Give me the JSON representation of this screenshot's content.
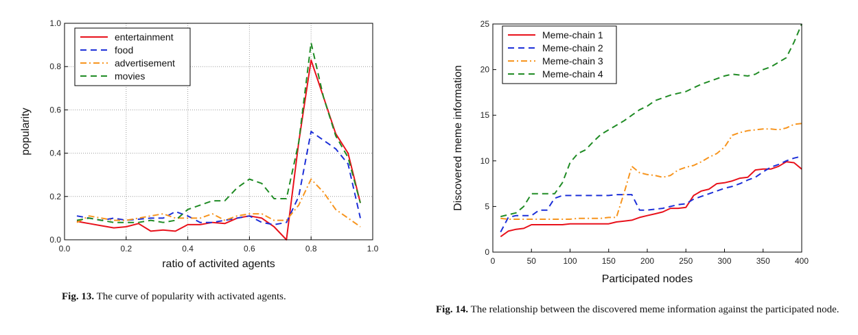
{
  "fig13": {
    "caption_label": "Fig. 13.",
    "caption_text": "The curve of popularity with activated agents."
  },
  "fig14": {
    "caption_label": "Fig. 14.",
    "caption_text": "The relationship between the discovered meme information against the participated node."
  },
  "chart_data": [
    {
      "type": "line",
      "title": "",
      "xlabel": "ratio of activited agents",
      "ylabel": "popularity",
      "xlim": [
        0.0,
        1.0
      ],
      "ylim": [
        0.0,
        1.0
      ],
      "xticks": [
        "0.0",
        "0.2",
        "0.4",
        "0.6",
        "0.8",
        "1.0"
      ],
      "yticks": [
        "0.0",
        "0.2",
        "0.4",
        "0.6",
        "0.8",
        "1.0"
      ],
      "grid": true,
      "legend_position": "top-left",
      "x": [
        0.04,
        0.08,
        0.12,
        0.16,
        0.2,
        0.24,
        0.28,
        0.32,
        0.36,
        0.4,
        0.44,
        0.48,
        0.52,
        0.56,
        0.6,
        0.64,
        0.68,
        0.72,
        0.76,
        0.8,
        0.84,
        0.88,
        0.92,
        0.96
      ],
      "series": [
        {
          "name": "entertainment",
          "color": "#e8101a",
          "dash": "solid",
          "values": [
            0.085,
            0.075,
            0.065,
            0.055,
            0.06,
            0.075,
            0.04,
            0.045,
            0.04,
            0.07,
            0.07,
            0.08,
            0.075,
            0.1,
            0.11,
            0.1,
            0.06,
            0.0,
            0.45,
            0.83,
            0.66,
            0.49,
            0.4,
            0.17
          ]
        },
        {
          "name": "food",
          "color": "#1c2fd8",
          "dash": "dash",
          "values": [
            0.11,
            0.1,
            0.09,
            0.1,
            0.09,
            0.095,
            0.1,
            0.1,
            0.13,
            0.11,
            0.08,
            0.08,
            0.09,
            0.1,
            0.11,
            0.08,
            0.07,
            0.08,
            0.2,
            0.5,
            0.46,
            0.42,
            0.35,
            0.1
          ]
        },
        {
          "name": "advertisement",
          "color": "#f7941d",
          "dash": "dashdot",
          "values": [
            0.08,
            0.11,
            0.1,
            0.09,
            0.09,
            0.1,
            0.11,
            0.12,
            0.1,
            0.1,
            0.1,
            0.12,
            0.09,
            0.11,
            0.12,
            0.12,
            0.09,
            0.09,
            0.16,
            0.28,
            0.22,
            0.14,
            0.1,
            0.06
          ]
        },
        {
          "name": "movies",
          "color": "#1f8b24",
          "dash": "dash",
          "values": [
            0.09,
            0.1,
            0.09,
            0.08,
            0.08,
            0.08,
            0.09,
            0.08,
            0.09,
            0.14,
            0.16,
            0.18,
            0.18,
            0.24,
            0.28,
            0.26,
            0.19,
            0.19,
            0.45,
            0.91,
            0.66,
            0.48,
            0.38,
            0.17
          ]
        }
      ]
    },
    {
      "type": "line",
      "title": "",
      "xlabel": "Participated nodes",
      "ylabel": "Discovered meme information",
      "xlim": [
        0,
        400
      ],
      "ylim": [
        0,
        25
      ],
      "xticks": [
        "0",
        "50",
        "100",
        "150",
        "200",
        "250",
        "300",
        "350",
        "400"
      ],
      "yticks": [
        "0",
        "5",
        "10",
        "15",
        "20",
        "25"
      ],
      "grid": false,
      "legend_position": "top-left",
      "x": [
        10,
        20,
        30,
        40,
        50,
        60,
        70,
        80,
        90,
        100,
        110,
        120,
        130,
        140,
        150,
        160,
        170,
        180,
        190,
        200,
        210,
        220,
        230,
        240,
        250,
        260,
        270,
        280,
        290,
        300,
        310,
        320,
        330,
        340,
        350,
        360,
        370,
        380,
        390,
        400
      ],
      "series": [
        {
          "name": "Meme-chain 1",
          "color": "#e8101a",
          "dash": "solid",
          "values": [
            1.7,
            2.3,
            2.5,
            2.6,
            3.0,
            3.0,
            3.0,
            3.0,
            3.0,
            3.1,
            3.1,
            3.1,
            3.1,
            3.1,
            3.1,
            3.3,
            3.4,
            3.5,
            3.8,
            4.0,
            4.2,
            4.4,
            4.8,
            4.8,
            4.9,
            6.2,
            6.7,
            6.9,
            7.5,
            7.6,
            7.8,
            8.1,
            8.2,
            9.0,
            9.1,
            9.1,
            9.4,
            9.9,
            9.8,
            9.1
          ]
        },
        {
          "name": "Meme-chain 2",
          "color": "#1c2fd8",
          "dash": "dash",
          "values": [
            2.2,
            3.8,
            4.0,
            4.0,
            4.0,
            4.6,
            4.6,
            5.9,
            6.2,
            6.2,
            6.2,
            6.2,
            6.2,
            6.2,
            6.2,
            6.3,
            6.3,
            6.3,
            4.6,
            4.6,
            4.7,
            4.8,
            5.0,
            5.2,
            5.3,
            5.8,
            6.1,
            6.4,
            6.7,
            7.0,
            7.2,
            7.5,
            7.9,
            8.2,
            8.8,
            9.3,
            9.6,
            10.0,
            10.3,
            10.5
          ]
        },
        {
          "name": "Meme-chain 3",
          "color": "#f7941d",
          "dash": "dashdot",
          "values": [
            3.7,
            3.6,
            3.6,
            3.6,
            3.6,
            3.6,
            3.6,
            3.6,
            3.6,
            3.6,
            3.7,
            3.7,
            3.7,
            3.7,
            3.8,
            3.8,
            6.5,
            9.4,
            8.7,
            8.5,
            8.4,
            8.2,
            8.4,
            9.0,
            9.3,
            9.5,
            9.9,
            10.4,
            10.8,
            11.5,
            12.8,
            13.1,
            13.3,
            13.4,
            13.5,
            13.5,
            13.4,
            13.6,
            14.0,
            14.1
          ]
        },
        {
          "name": "Meme-chain 4",
          "color": "#1f8b24",
          "dash": "dash",
          "values": [
            3.9,
            4.1,
            4.3,
            5.0,
            6.4,
            6.4,
            6.4,
            6.4,
            7.6,
            9.8,
            10.8,
            11.2,
            12.1,
            12.9,
            13.4,
            13.9,
            14.4,
            15.0,
            15.6,
            16.0,
            16.6,
            16.9,
            17.2,
            17.4,
            17.6,
            18.0,
            18.4,
            18.7,
            19.0,
            19.3,
            19.5,
            19.4,
            19.3,
            19.5,
            20.0,
            20.3,
            20.8,
            21.3,
            23.0,
            25.0
          ]
        }
      ]
    }
  ]
}
